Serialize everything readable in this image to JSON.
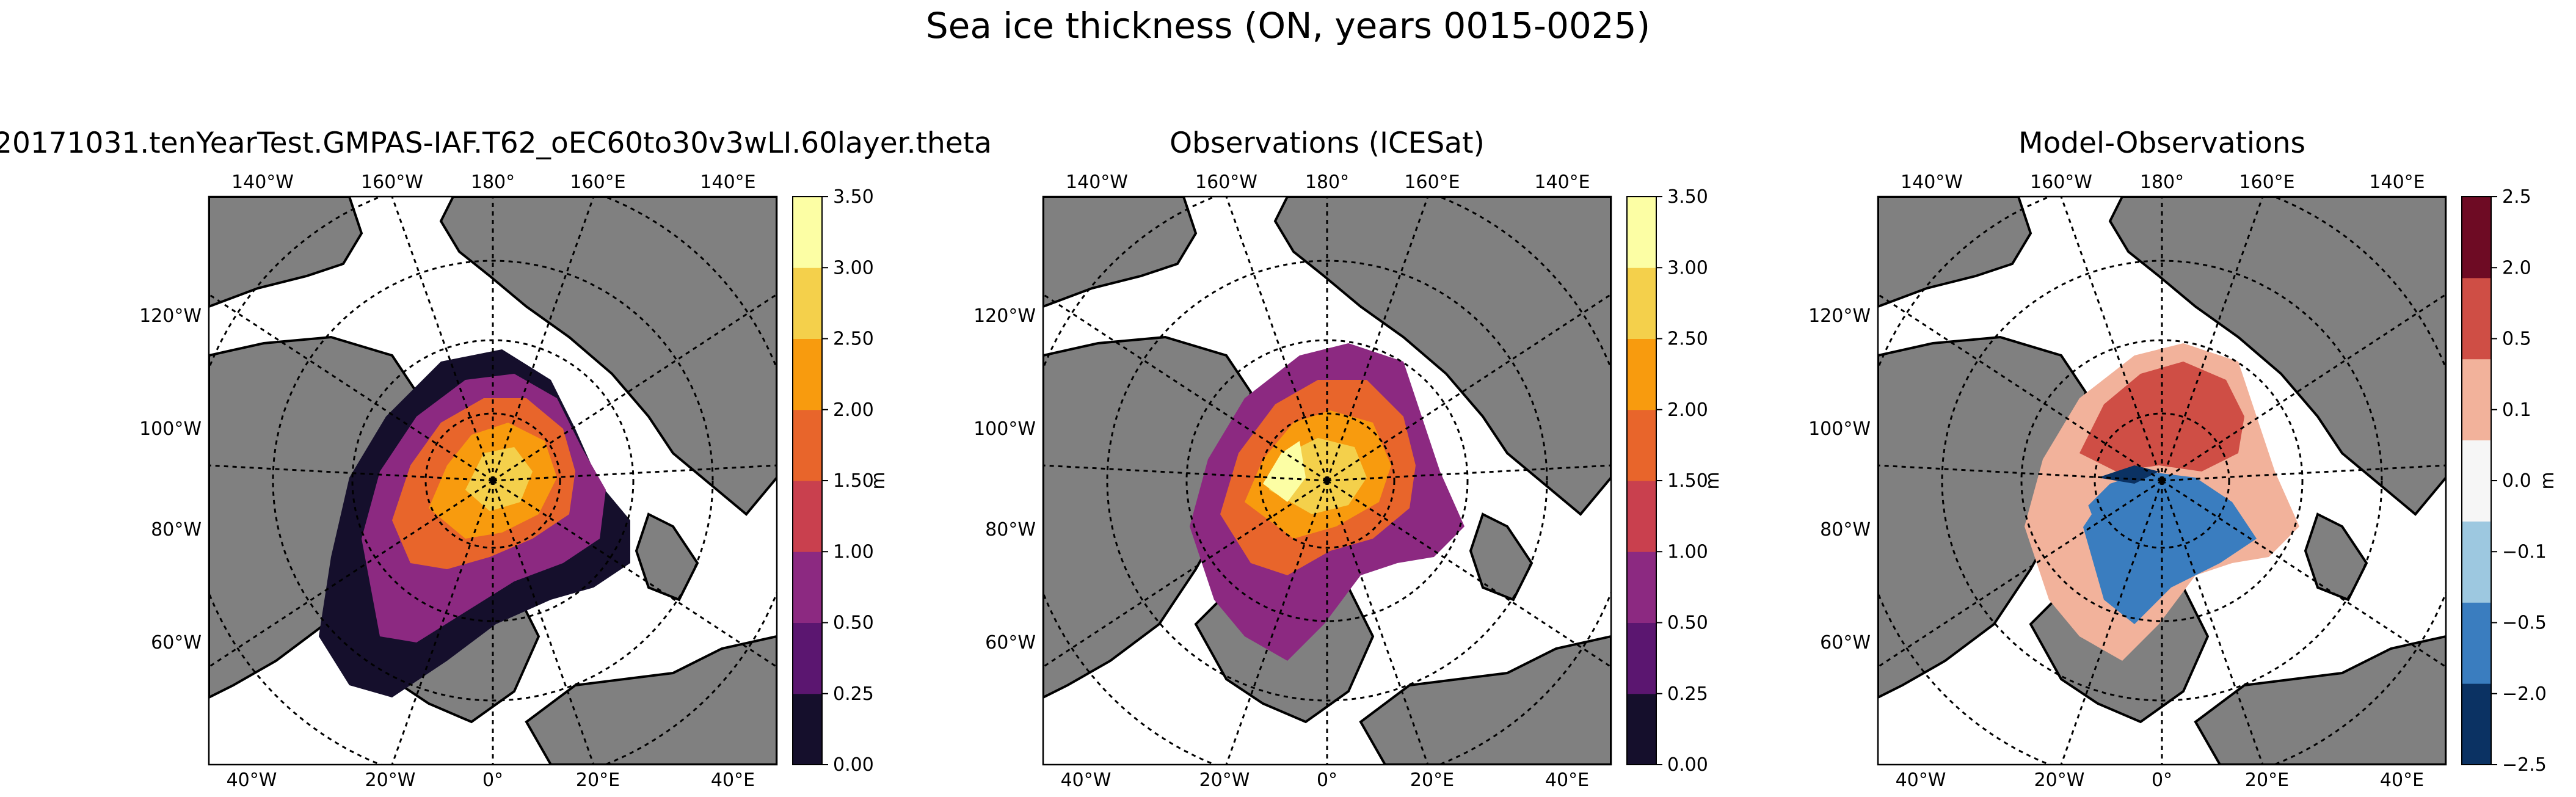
{
  "figure": {
    "title": "Sea ice thickness (ON, years 0015-0025)"
  },
  "colors": {
    "land": "#808080",
    "ocean": "#ffffff",
    "coast": "#000000",
    "grid": "#000000",
    "inferno": [
      "#150f2c",
      "#5b1670",
      "#8c2981",
      "#c9404e",
      "#e8652b",
      "#f89b0e",
      "#f4d04b",
      "#fcfea4"
    ],
    "diverging": [
      "#0b3263",
      "#3a7dbf",
      "#9dc8e0",
      "#f6f6f6",
      "#f2b29b",
      "#cf4e45",
      "#6e0b24"
    ]
  },
  "map_labels": {
    "top": [
      "140°W",
      "160°W",
      "180°",
      "160°E",
      "140°E"
    ],
    "left": [
      "120°W",
      "100°W",
      "80°W",
      "60°W"
    ],
    "bottom": [
      "40°W",
      "20°W",
      "0°",
      "20°E",
      "40°E"
    ]
  },
  "panels": [
    {
      "title": "20171031.tenYearTest.GMPAS-IAF.T62_oEC60to30v3wLI.60layer.theta",
      "colorbar_label": "m",
      "colorbar_ticks": [
        "0.00",
        "0.25",
        "0.50",
        "1.00",
        "1.50",
        "2.00",
        "2.50",
        "3.00",
        "3.50"
      ],
      "palette": "inferno"
    },
    {
      "title": "Observations (ICESat)",
      "colorbar_label": "m",
      "colorbar_ticks": [
        "0.00",
        "0.25",
        "0.50",
        "1.00",
        "1.50",
        "2.00",
        "2.50",
        "3.00",
        "3.50"
      ],
      "palette": "inferno"
    },
    {
      "title": "Model-Observations",
      "colorbar_label": "m",
      "colorbar_ticks": [
        "−2.5",
        "−2.0",
        "−0.5",
        "−0.1",
        "0.0",
        "0.1",
        "0.5",
        "2.0",
        "2.5"
      ],
      "palette": "diverging"
    }
  ]
}
